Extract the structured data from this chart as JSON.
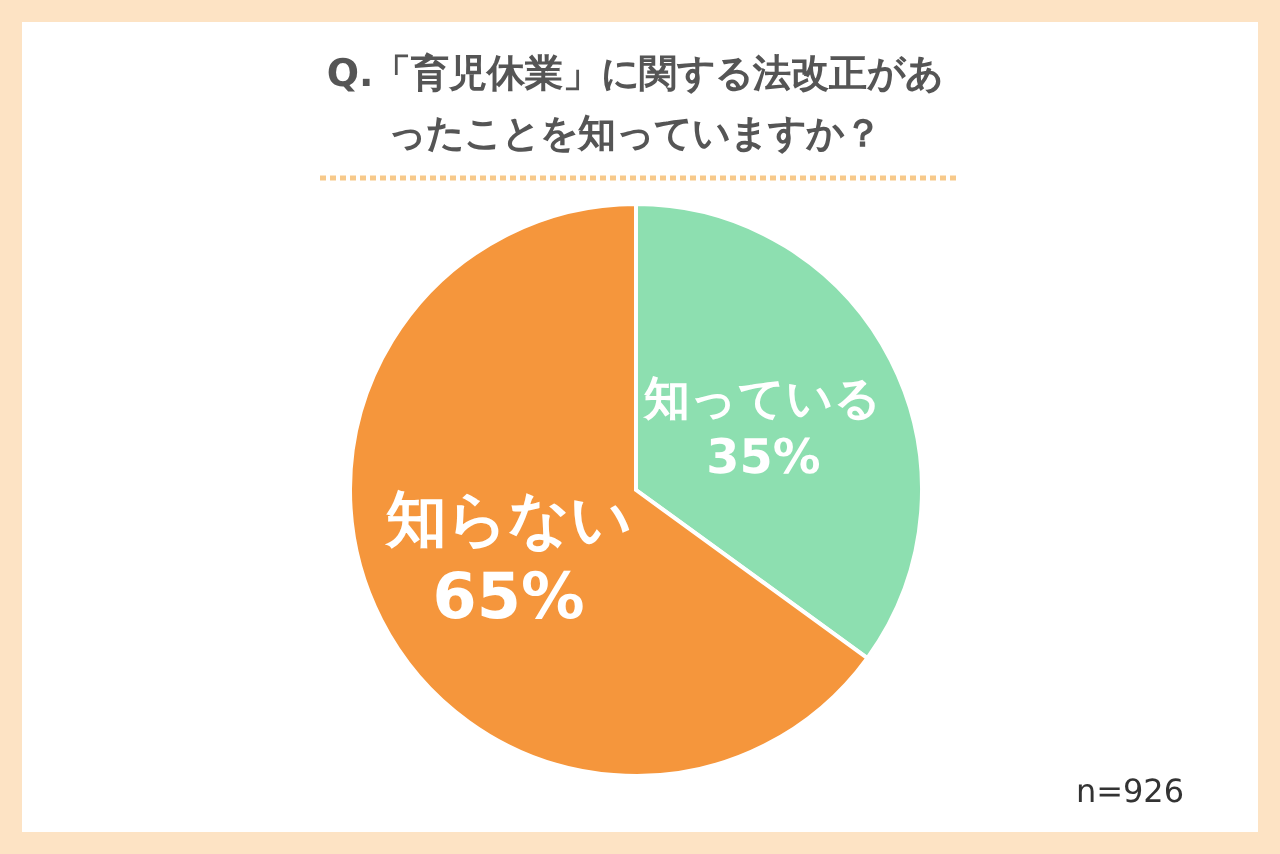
{
  "chart_data": {
    "type": "pie",
    "title": "Q.「育児休業」に関する法改正があったことを知っていますか？",
    "categories": [
      "知っている",
      "知らない"
    ],
    "values": [
      35,
      65
    ],
    "value_labels": [
      "35%",
      "65%"
    ],
    "colors": [
      "#8ddfb0",
      "#f5963c"
    ],
    "annotations": [
      "n=926"
    ]
  }
}
